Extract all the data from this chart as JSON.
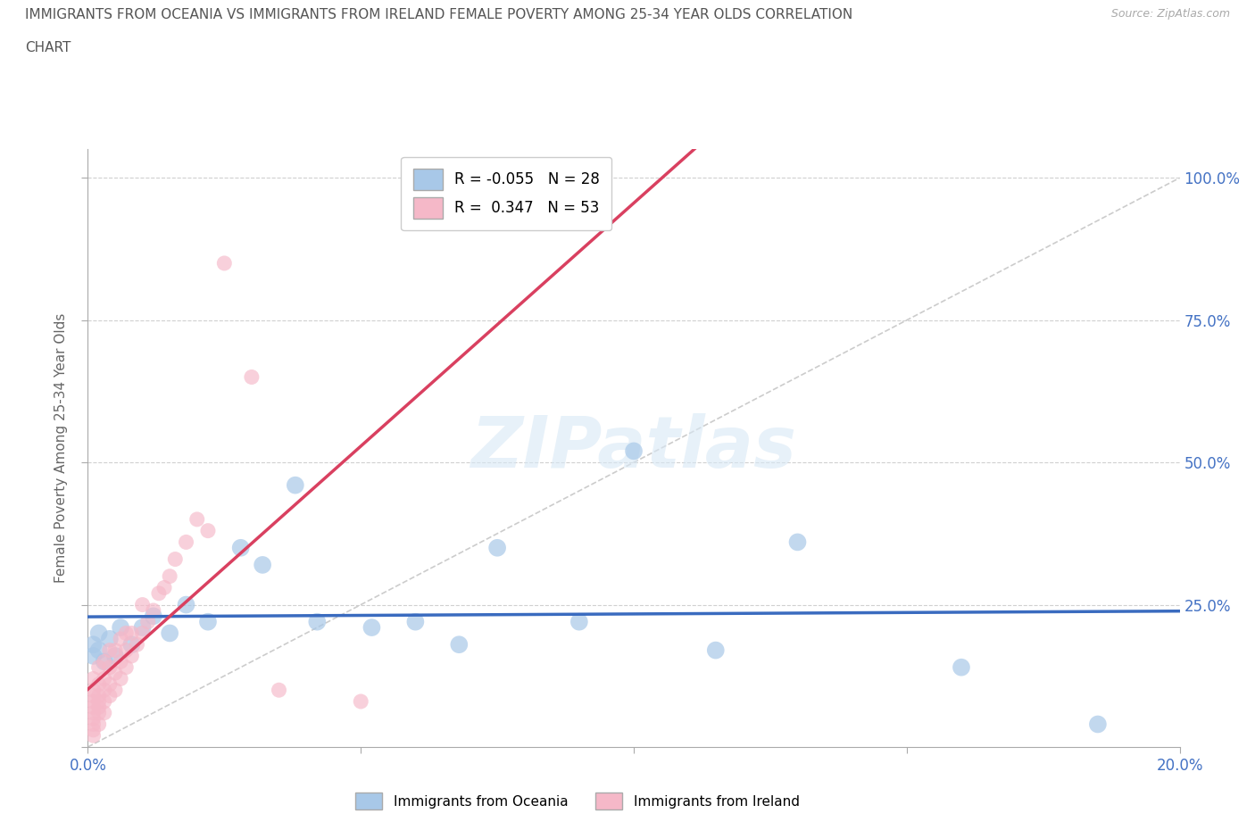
{
  "title_line1": "IMMIGRANTS FROM OCEANIA VS IMMIGRANTS FROM IRELAND FEMALE POVERTY AMONG 25-34 YEAR OLDS CORRELATION",
  "title_line2": "CHART",
  "source": "Source: ZipAtlas.com",
  "ylabel": "Female Poverty Among 25-34 Year Olds",
  "xlim": [
    0.0,
    0.2
  ],
  "ylim": [
    0.0,
    1.05
  ],
  "xticks": [
    0.0,
    0.05,
    0.1,
    0.15,
    0.2
  ],
  "xtick_labels": [
    "0.0%",
    "",
    "",
    "",
    "20.0%"
  ],
  "yticks": [
    0.0,
    0.25,
    0.5,
    0.75,
    1.0
  ],
  "ytick_labels": [
    "",
    "25.0%",
    "50.0%",
    "75.0%",
    "100.0%"
  ],
  "oceania_color": "#a8c8e8",
  "ireland_color": "#f5b8c8",
  "oceania_line_color": "#3a6bbf",
  "ireland_line_color": "#d94060",
  "legend_oceania": "R = -0.055   N = 28",
  "legend_ireland": "R =  0.347   N = 53",
  "background_color": "#ffffff",
  "watermark": "ZIPatlas",
  "grid_color": "#d0d0d0",
  "oceania_x": [
    0.001,
    0.001,
    0.002,
    0.002,
    0.003,
    0.004,
    0.005,
    0.006,
    0.008,
    0.01,
    0.012,
    0.015,
    0.018,
    0.022,
    0.028,
    0.032,
    0.038,
    0.042,
    0.052,
    0.06,
    0.068,
    0.075,
    0.09,
    0.1,
    0.115,
    0.13,
    0.16,
    0.185
  ],
  "oceania_y": [
    0.18,
    0.16,
    0.2,
    0.17,
    0.15,
    0.19,
    0.16,
    0.21,
    0.18,
    0.21,
    0.23,
    0.2,
    0.25,
    0.22,
    0.35,
    0.32,
    0.46,
    0.22,
    0.21,
    0.22,
    0.18,
    0.35,
    0.22,
    0.52,
    0.17,
    0.36,
    0.14,
    0.04
  ],
  "ireland_x": [
    0.001,
    0.001,
    0.001,
    0.001,
    0.001,
    0.001,
    0.001,
    0.001,
    0.001,
    0.001,
    0.002,
    0.002,
    0.002,
    0.002,
    0.002,
    0.002,
    0.002,
    0.003,
    0.003,
    0.003,
    0.003,
    0.003,
    0.004,
    0.004,
    0.004,
    0.004,
    0.005,
    0.005,
    0.005,
    0.006,
    0.006,
    0.006,
    0.007,
    0.007,
    0.007,
    0.008,
    0.008,
    0.009,
    0.01,
    0.01,
    0.011,
    0.012,
    0.013,
    0.014,
    0.015,
    0.016,
    0.018,
    0.02,
    0.022,
    0.025,
    0.03,
    0.035,
    0.05
  ],
  "ireland_y": [
    0.02,
    0.03,
    0.04,
    0.05,
    0.06,
    0.07,
    0.08,
    0.09,
    0.1,
    0.12,
    0.04,
    0.06,
    0.07,
    0.08,
    0.09,
    0.11,
    0.14,
    0.06,
    0.08,
    0.1,
    0.12,
    0.15,
    0.09,
    0.11,
    0.14,
    0.17,
    0.1,
    0.13,
    0.17,
    0.12,
    0.15,
    0.19,
    0.14,
    0.17,
    0.2,
    0.16,
    0.2,
    0.18,
    0.2,
    0.25,
    0.22,
    0.24,
    0.27,
    0.28,
    0.3,
    0.33,
    0.36,
    0.4,
    0.38,
    0.85,
    0.65,
    0.1,
    0.08
  ]
}
